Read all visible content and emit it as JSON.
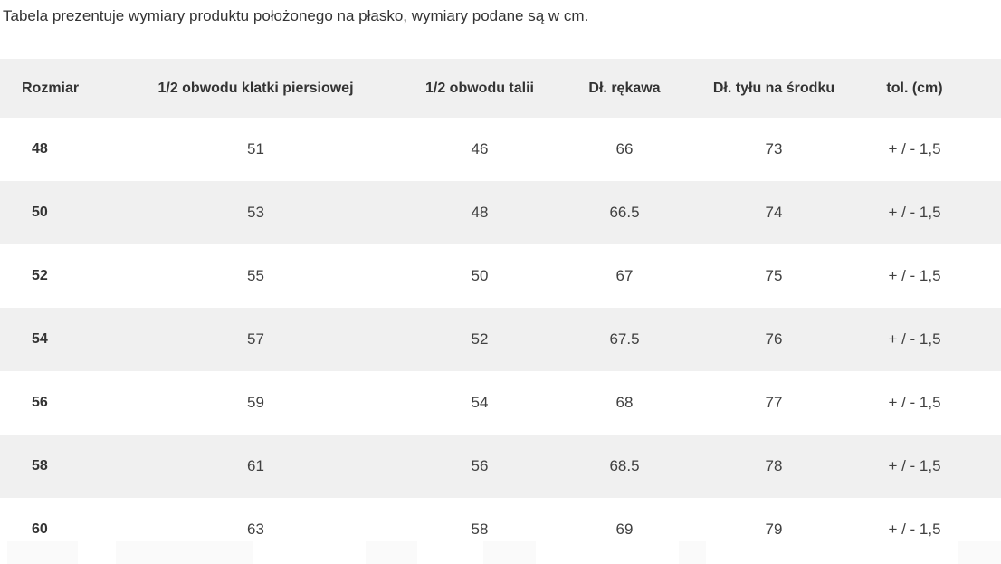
{
  "caption": "Tabela prezentuje wymiary produktu położonego na płasko, wymiary podane są w cm.",
  "table": {
    "columns": [
      "Rozmiar",
      "1/2 obwodu klatki piersiowej",
      "1/2 obwodu talii",
      "Dł. rękawa",
      "Dł. tyłu na środku",
      "tol. (cm)"
    ],
    "rows": [
      {
        "size": "48",
        "chest": "51",
        "waist": "46",
        "sleeve": "66",
        "back": "73",
        "tolerance": "+ / - 1,5"
      },
      {
        "size": "50",
        "chest": "53",
        "waist": "48",
        "sleeve": "66.5",
        "back": "74",
        "tolerance": "+ / - 1,5"
      },
      {
        "size": "52",
        "chest": "55",
        "waist": "50",
        "sleeve": "67",
        "back": "75",
        "tolerance": "+ / - 1,5"
      },
      {
        "size": "54",
        "chest": "57",
        "waist": "52",
        "sleeve": "67.5",
        "back": "76",
        "tolerance": "+ / - 1,5"
      },
      {
        "size": "56",
        "chest": "59",
        "waist": "54",
        "sleeve": "68",
        "back": "77",
        "tolerance": "+ / - 1,5"
      },
      {
        "size": "58",
        "chest": "61",
        "waist": "56",
        "sleeve": "68.5",
        "back": "78",
        "tolerance": "+ / - 1,5"
      },
      {
        "size": "60",
        "chest": "63",
        "waist": "58",
        "sleeve": "69",
        "back": "79",
        "tolerance": "+ / - 1,5"
      }
    ]
  },
  "colors": {
    "stripe": "#f0f0f0",
    "header_text": "#333333",
    "cell_text": "#404040",
    "background": "#ffffff"
  }
}
